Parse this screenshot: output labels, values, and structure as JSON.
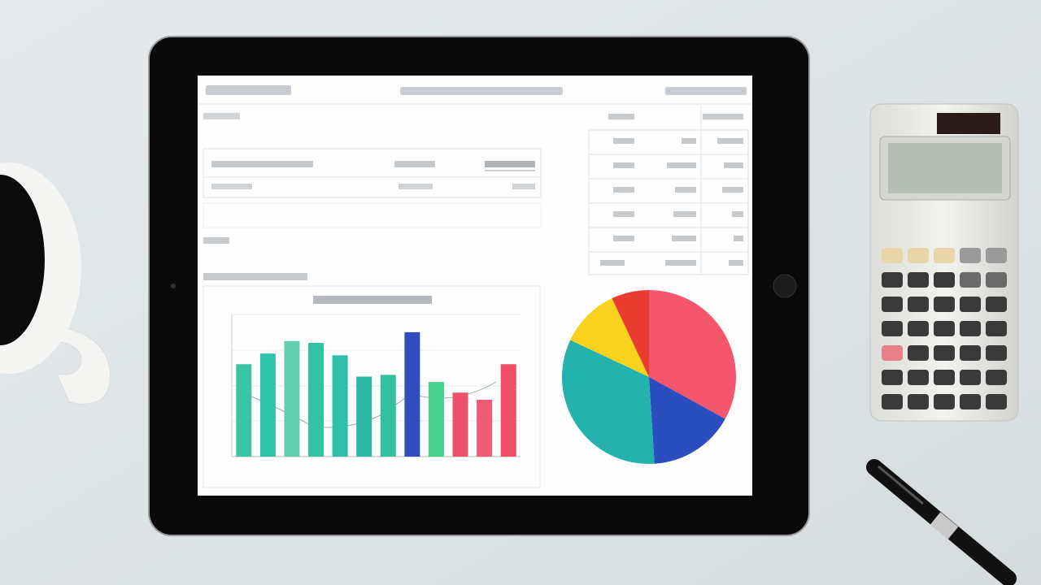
{
  "chart_data": [
    {
      "type": "bar",
      "values": [
        26,
        29,
        32.5,
        32,
        28.5,
        22.5,
        23,
        35,
        21,
        18,
        16,
        26
      ],
      "colors": [
        "#3cc4a6",
        "#2fc3ad",
        "#62cfae",
        "#35c2a2",
        "#2ec0a8",
        "#2bb6a6",
        "#34c09f",
        "#2f4fc0",
        "#47d08e",
        "#ee5068",
        "#f05a74",
        "#ef4e66"
      ],
      "ylim": [
        0,
        40
      ]
    },
    {
      "type": "pie",
      "values": [
        33,
        16,
        33,
        11,
        7
      ],
      "colors": [
        "#f4566c",
        "#2a4dc0",
        "#23b2ad",
        "#f8d21c",
        "#ea3b30"
      ]
    }
  ]
}
